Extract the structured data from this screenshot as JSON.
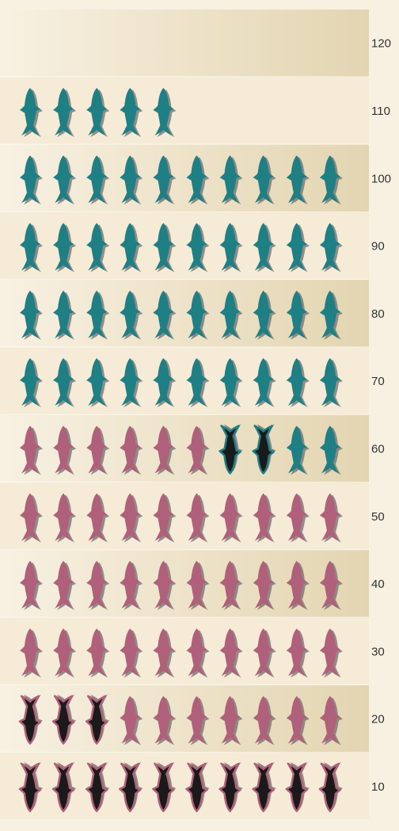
{
  "chart_data": {
    "type": "bar",
    "subtype": "pictogram",
    "orientation": "vertical stacked icons, 10 icons per row",
    "icon": "fish-icon",
    "y_ticks": [
      "120",
      "110",
      "100",
      "90",
      "80",
      "70",
      "60",
      "50",
      "40",
      "30",
      "20",
      "10"
    ],
    "icons_per_row": 10,
    "series": [
      {
        "color": "#1a1a1a",
        "outline": "#b0607a",
        "count": 13,
        "description": "dark fish, pink outline, upside down"
      },
      {
        "color": "#b0607a",
        "count": 43,
        "description": "pink fish, upright"
      },
      {
        "color": "#1a1a1a",
        "outline": "#1e7f85",
        "count": 2,
        "description": "dark fish, teal outline, upside down"
      },
      {
        "color": "#1e7f85",
        "count": 47,
        "description": "teal fish, upright"
      }
    ],
    "total_icons": 105,
    "background_gradient": [
      "#f8f1e2",
      "#e6d9b8"
    ],
    "band_colors": [
      "#f4ead4",
      "#efe3c6"
    ]
  }
}
